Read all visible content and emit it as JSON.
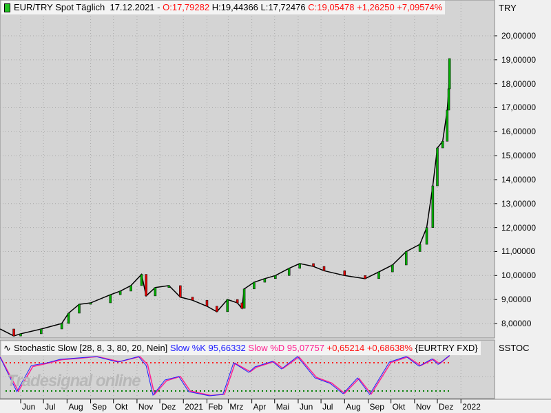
{
  "header": {
    "symbol": "EUR/TRY Spot Täglich",
    "date": "17.12.2021 -",
    "open": "O:17,79282",
    "high": "H:19,44366",
    "low": "L:17,72476",
    "close": "C:19,05478",
    "change": "+1,26250",
    "change_pct": "+7,09574%"
  },
  "price_axis": {
    "unit": "TRY",
    "ticks": [
      "8,00000",
      "9,00000",
      "10,00000",
      "11,00000",
      "12,00000",
      "13,00000",
      "14,00000",
      "15,00000",
      "16,00000",
      "17,00000",
      "18,00000",
      "19,00000",
      "20,00000"
    ]
  },
  "indicator": {
    "name": "Stochastic Slow [28, 8, 3, 80, 20, Nein]",
    "k_label": "Slow %K 95,66332",
    "d_label": "Slow %D 95,07757",
    "change": "+0,65214",
    "change_pct": "+0,68638%",
    "instrument": "{EURTRY FXD}",
    "axis_label": "SSTOC",
    "upper_level": 80,
    "lower_level": 20
  },
  "watermark": "Tradesignal online",
  "time_axis": [
    "Jun",
    "Jul",
    "Aug",
    "Sep",
    "Okt",
    "Nov",
    "Dez",
    "2021",
    "Feb",
    "Mrz",
    "Apr",
    "Mai",
    "Jun",
    "Jul",
    "Aug",
    "Sep",
    "Okt",
    "Nov",
    "Dez",
    "2022"
  ],
  "colors": {
    "up": "#00b000",
    "down": "#e00000",
    "k": "#2020ff",
    "d": "#ff2090",
    "upper": "#ff2020",
    "lower": "#008000",
    "plot_bg": "#d4d4d4"
  },
  "chart_data": [
    {
      "type": "line",
      "series": [
        {
          "name": "EUR/TRY Spot Täglich",
          "points": [
            [
              "2020-05-05",
              7.77
            ],
            [
              "2020-05-23",
              7.48
            ],
            [
              "2020-06-01",
              7.57
            ],
            [
              "2020-06-28",
              7.77
            ],
            [
              "2020-07-25",
              8.0
            ],
            [
              "2020-08-03",
              8.43
            ],
            [
              "2020-08-17",
              8.8
            ],
            [
              "2020-09-01",
              8.86
            ],
            [
              "2020-09-27",
              9.2
            ],
            [
              "2020-10-10",
              9.35
            ],
            [
              "2020-10-24",
              9.58
            ],
            [
              "2020-11-07",
              10.05
            ],
            [
              "2020-11-13",
              9.15
            ],
            [
              "2020-11-25",
              9.5
            ],
            [
              "2020-12-13",
              9.58
            ],
            [
              "2020-12-28",
              9.1
            ],
            [
              "2021-01-13",
              8.97
            ],
            [
              "2021-02-01",
              8.72
            ],
            [
              "2021-02-14",
              8.49
            ],
            [
              "2021-02-28",
              9.0
            ],
            [
              "2021-03-13",
              8.86
            ],
            [
              "2021-03-19",
              8.63
            ],
            [
              "2021-03-22",
              9.44
            ],
            [
              "2021-04-04",
              9.72
            ],
            [
              "2021-04-18",
              9.87
            ],
            [
              "2021-05-02",
              10.0
            ],
            [
              "2021-05-20",
              10.3
            ],
            [
              "2021-06-03",
              10.5
            ],
            [
              "2021-06-21",
              10.38
            ],
            [
              "2021-07-05",
              10.2
            ],
            [
              "2021-08-01",
              10.0
            ],
            [
              "2021-08-28",
              9.87
            ],
            [
              "2021-09-15",
              10.15
            ],
            [
              "2021-10-03",
              10.44
            ],
            [
              "2021-10-21",
              11.0
            ],
            [
              "2021-11-08",
              11.3
            ],
            [
              "2021-11-17",
              12.0
            ],
            [
              "2021-11-25",
              13.74
            ],
            [
              "2021-12-01",
              15.32
            ],
            [
              "2021-12-08",
              15.6
            ],
            [
              "2021-12-14",
              16.9
            ],
            [
              "2021-12-16",
              17.79
            ],
            [
              "2021-12-17",
              19.05
            ]
          ]
        }
      ],
      "ylim": [
        7.3,
        20.5
      ]
    },
    {
      "type": "line",
      "series": [
        {
          "name": "Slow %K",
          "points": [
            [
              "2020-05-05",
              91.8
            ],
            [
              "2020-05-27",
              18.6
            ],
            [
              "2020-06-15",
              74.2
            ],
            [
              "2020-07-06",
              80
            ],
            [
              "2020-07-23",
              87.4
            ],
            [
              "2020-09-08",
              93.3
            ],
            [
              "2020-10-07",
              81.6
            ],
            [
              "2020-11-03",
              93.3
            ],
            [
              "2020-11-13",
              74.2
            ],
            [
              "2020-11-22",
              11.3
            ],
            [
              "2020-12-08",
              43.5
            ],
            [
              "2020-12-26",
              50.8
            ],
            [
              "2021-01-08",
              18.6
            ],
            [
              "2021-02-04",
              9.8
            ],
            [
              "2021-02-22",
              12.7
            ],
            [
              "2021-03-08",
              80
            ],
            [
              "2021-03-28",
              59.6
            ],
            [
              "2021-04-05",
              71.3
            ],
            [
              "2021-04-28",
              83
            ],
            [
              "2021-05-10",
              66.9
            ],
            [
              "2021-05-31",
              93.3
            ],
            [
              "2021-06-23",
              47.9
            ],
            [
              "2021-07-13",
              36.2
            ],
            [
              "2021-07-30",
              14.2
            ],
            [
              "2021-08-18",
              47.9
            ],
            [
              "2021-09-03",
              12.7
            ],
            [
              "2021-09-29",
              81.6
            ],
            [
              "2021-10-21",
              93.3
            ],
            [
              "2021-11-07",
              72.8
            ],
            [
              "2021-11-24",
              88.4
            ],
            [
              "2021-12-02",
              76.6
            ],
            [
              "2021-12-17",
              95.66
            ]
          ]
        },
        {
          "name": "Slow %D",
          "points": [
            [
              "2020-05-05",
              92.5
            ],
            [
              "2020-05-29",
              19.5
            ],
            [
              "2020-06-17",
              72
            ],
            [
              "2020-07-08",
              79.5
            ],
            [
              "2020-07-25",
              86.5
            ],
            [
              "2020-09-10",
              93
            ],
            [
              "2020-10-09",
              82.5
            ],
            [
              "2020-11-05",
              93
            ],
            [
              "2020-11-15",
              76
            ],
            [
              "2020-11-24",
              13
            ],
            [
              "2020-12-10",
              42
            ],
            [
              "2020-12-28",
              51
            ],
            [
              "2021-01-10",
              20
            ],
            [
              "2021-02-06",
              10.5
            ],
            [
              "2021-02-24",
              13
            ],
            [
              "2021-03-10",
              79
            ],
            [
              "2021-03-30",
              61
            ],
            [
              "2021-04-07",
              70.5
            ],
            [
              "2021-04-30",
              82.5
            ],
            [
              "2021-05-12",
              68
            ],
            [
              "2021-06-02",
              92.5
            ],
            [
              "2021-06-25",
              49
            ],
            [
              "2021-07-15",
              37
            ],
            [
              "2021-08-01",
              15
            ],
            [
              "2021-08-20",
              46.5
            ],
            [
              "2021-09-05",
              13.5
            ],
            [
              "2021-10-01",
              80.5
            ],
            [
              "2021-10-23",
              92.5
            ],
            [
              "2021-11-09",
              74
            ],
            [
              "2021-11-26",
              87.5
            ],
            [
              "2021-12-04",
              78
            ],
            [
              "2021-12-17",
              95.08
            ]
          ]
        }
      ],
      "ylim": [
        0,
        100
      ]
    }
  ]
}
